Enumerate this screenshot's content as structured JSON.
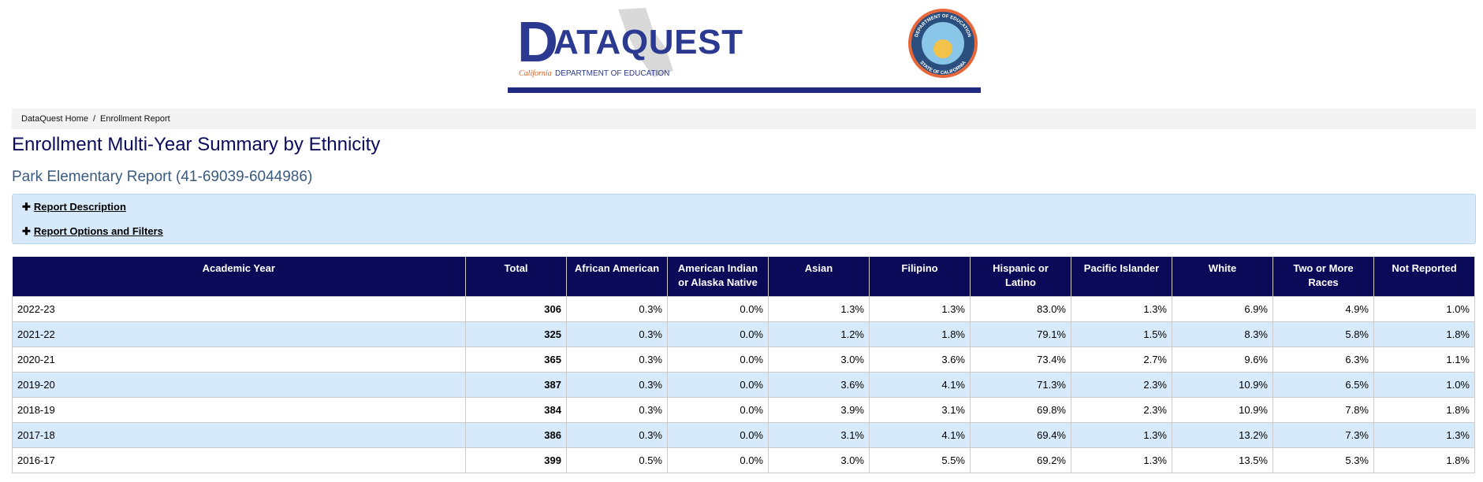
{
  "header": {
    "logo": {
      "first": "D",
      "rest": "ATAQUEST",
      "state": "California",
      "dept": "DEPARTMENT OF EDUCATION"
    },
    "seal": {
      "top": "DEPARTMENT OF EDUCATION",
      "bottom": "STATE OF CALIFORNIA"
    }
  },
  "breadcrumb": [
    "DataQuest Home",
    "/",
    "Enrollment Report"
  ],
  "title": "Enrollment Multi-Year Summary by Ethnicity",
  "subtitle": "Park Elementary Report (41-69039-6044986)",
  "accordion": [
    "Report Description",
    "Report Options and Filters"
  ],
  "table": {
    "columns": [
      "Academic Year",
      "Total",
      "African American",
      "American Indian or Alaska Native",
      "Asian",
      "Filipino",
      "Hispanic or Latino",
      "Pacific Islander",
      "White",
      "Two or More Races",
      "Not Reported"
    ],
    "rows": [
      [
        "2022-23",
        "306",
        "0.3%",
        "0.0%",
        "1.3%",
        "1.3%",
        "83.0%",
        "1.3%",
        "6.9%",
        "4.9%",
        "1.0%"
      ],
      [
        "2021-22",
        "325",
        "0.3%",
        "0.0%",
        "1.2%",
        "1.8%",
        "79.1%",
        "1.5%",
        "8.3%",
        "5.8%",
        "1.8%"
      ],
      [
        "2020-21",
        "365",
        "0.3%",
        "0.0%",
        "3.0%",
        "3.6%",
        "73.4%",
        "2.7%",
        "9.6%",
        "6.3%",
        "1.1%"
      ],
      [
        "2019-20",
        "387",
        "0.3%",
        "0.0%",
        "3.6%",
        "4.1%",
        "71.3%",
        "2.3%",
        "10.9%",
        "6.5%",
        "1.0%"
      ],
      [
        "2018-19",
        "384",
        "0.3%",
        "0.0%",
        "3.9%",
        "3.1%",
        "69.8%",
        "2.3%",
        "10.9%",
        "7.8%",
        "1.8%"
      ],
      [
        "2017-18",
        "386",
        "0.3%",
        "0.0%",
        "3.1%",
        "4.1%",
        "69.4%",
        "1.3%",
        "13.2%",
        "7.3%",
        "1.3%"
      ],
      [
        "2016-17",
        "399",
        "0.5%",
        "0.0%",
        "3.0%",
        "5.5%",
        "69.2%",
        "1.3%",
        "13.5%",
        "5.3%",
        "1.8%"
      ]
    ]
  }
}
